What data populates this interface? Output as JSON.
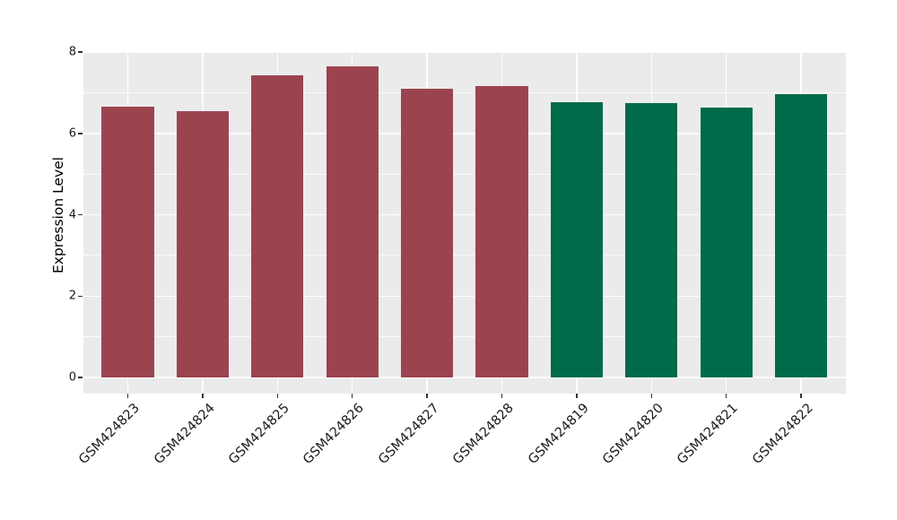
{
  "chart_data": {
    "type": "bar",
    "title": "",
    "xlabel": "",
    "ylabel": "Expression Level",
    "categories": [
      "GSM424823",
      "GSM424824",
      "GSM424825",
      "GSM424826",
      "GSM424827",
      "GSM424828",
      "GSM424819",
      "GSM424820",
      "GSM424821",
      "GSM424822"
    ],
    "values": [
      6.66,
      6.55,
      7.43,
      7.65,
      7.09,
      7.17,
      6.77,
      6.75,
      6.64,
      6.97
    ],
    "bar_colors": [
      "#9b4450",
      "#9b4450",
      "#9b4450",
      "#9b4450",
      "#9b4450",
      "#9b4450",
      "#006b4a",
      "#006b4a",
      "#006b4a",
      "#006b4a"
    ],
    "ylim": [
      0,
      8.05
    ],
    "yticks": [
      0,
      2,
      4,
      6,
      8
    ],
    "yticks_minor": [
      1,
      3,
      5,
      7
    ],
    "grid": true,
    "legend_position": "none"
  },
  "style": {
    "figure_background": "#ffffff",
    "panel_background": "#ebebeb",
    "grid_color": "#ffffff",
    "bar_color_group1": "#9b4450",
    "bar_color_group2": "#006b4a",
    "text_color": "#1a1a1a",
    "tick_color": "#333333"
  }
}
